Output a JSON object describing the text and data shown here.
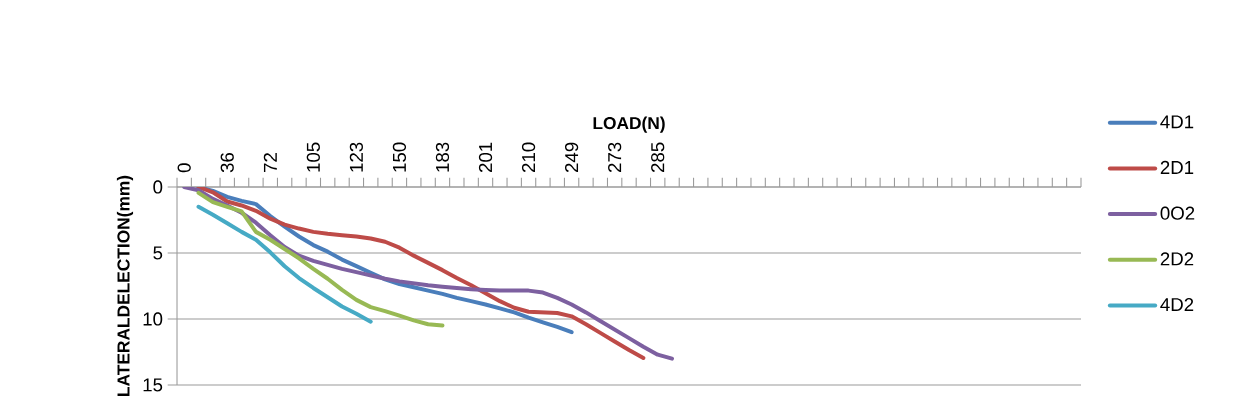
{
  "chart_data": {
    "type": "line",
    "xlabel": "LOAD(N)",
    "ylabel": "LATERALDELECTION(mm)",
    "categories": [
      "0",
      null,
      null,
      "36",
      null,
      null,
      "72",
      null,
      null,
      "105",
      null,
      null,
      "123",
      null,
      null,
      "150",
      null,
      null,
      "183",
      null,
      null,
      "201",
      null,
      null,
      "210",
      null,
      null,
      "249",
      null,
      null,
      "273",
      null,
      null,
      "285",
      null,
      null,
      null,
      null,
      null,
      null,
      null,
      null,
      null,
      null,
      null,
      null,
      null,
      null,
      null,
      null,
      null,
      null,
      null,
      null,
      null,
      null,
      null,
      null,
      null,
      null,
      null,
      null,
      null
    ],
    "series": [
      {
        "name": "4D1",
        "color": "#4a7ebb",
        "values": [
          null,
          0,
          0.3,
          0.75,
          1.05,
          1.3,
          2.2,
          3.0,
          3.75,
          4.4,
          4.9,
          5.5,
          6.0,
          6.5,
          7.0,
          7.35,
          7.6,
          7.85,
          8.1,
          8.4,
          8.65,
          8.9,
          9.2,
          9.5,
          9.9,
          10.25,
          10.6,
          11.0,
          null,
          null,
          null,
          null,
          null,
          null,
          null,
          null,
          null,
          null,
          null,
          null,
          null,
          null,
          null,
          null,
          null,
          null,
          null,
          null,
          null,
          null,
          null,
          null,
          null,
          null,
          null,
          null,
          null,
          null,
          null,
          null,
          null,
          null,
          null
        ]
      },
      {
        "name": "2D1",
        "color": "#be4b48",
        "values": [
          null,
          0,
          0.4,
          1.1,
          1.4,
          1.8,
          2.4,
          2.85,
          3.15,
          3.4,
          3.55,
          3.65,
          3.75,
          3.9,
          4.15,
          4.6,
          5.2,
          5.75,
          6.3,
          6.9,
          7.45,
          8.05,
          8.65,
          9.15,
          9.45,
          9.5,
          9.55,
          9.8,
          10.4,
          11.05,
          11.7,
          12.35,
          12.95,
          null,
          null,
          null,
          null,
          null,
          null,
          null,
          null,
          null,
          null,
          null,
          null,
          null,
          null,
          null,
          null,
          null,
          null,
          null,
          null,
          null,
          null,
          null,
          null,
          null,
          null,
          null,
          null,
          null,
          null
        ]
      },
      {
        "name": "0O2",
        "color": "#7d60a0",
        "values": [
          0,
          0.25,
          0.9,
          1.4,
          1.95,
          2.7,
          3.65,
          4.55,
          5.2,
          5.6,
          5.9,
          6.2,
          6.45,
          6.7,
          6.95,
          7.15,
          7.3,
          7.45,
          7.55,
          7.65,
          7.75,
          7.8,
          7.85,
          7.85,
          7.85,
          8.0,
          8.4,
          8.9,
          9.5,
          10.15,
          10.8,
          11.45,
          12.1,
          12.7,
          13.0,
          null,
          null,
          null,
          null,
          null,
          null,
          null,
          null,
          null,
          null,
          null,
          null,
          null,
          null,
          null,
          null,
          null,
          null,
          null,
          null,
          null,
          null,
          null,
          null,
          null,
          null,
          null,
          null
        ]
      },
      {
        "name": "2D2",
        "color": "#98b954",
        "values": [
          null,
          0.45,
          1.15,
          1.5,
          1.85,
          3.4,
          4.0,
          4.7,
          5.4,
          6.2,
          6.95,
          7.8,
          8.55,
          9.1,
          9.4,
          9.75,
          10.1,
          10.4,
          10.5,
          null,
          null,
          null,
          null,
          null,
          null,
          null,
          null,
          null,
          null,
          null,
          null,
          null,
          null,
          null,
          null,
          null,
          null,
          null,
          null,
          null,
          null,
          null,
          null,
          null,
          null,
          null,
          null,
          null,
          null,
          null,
          null,
          null,
          null,
          null,
          null,
          null,
          null,
          null,
          null,
          null,
          null,
          null,
          null
        ]
      },
      {
        "name": "4D2",
        "color": "#46aac5",
        "values": [
          null,
          1.5,
          2.1,
          2.75,
          3.4,
          4.0,
          4.95,
          6.0,
          6.9,
          7.65,
          8.35,
          9.05,
          9.6,
          10.2,
          null,
          null,
          null,
          null,
          null,
          null,
          null,
          null,
          null,
          null,
          null,
          null,
          null,
          null,
          null,
          null,
          null,
          null,
          null,
          null,
          null,
          null,
          null,
          null,
          null,
          null,
          null,
          null,
          null,
          null,
          null,
          null,
          null,
          null,
          null,
          null,
          null,
          null,
          null,
          null,
          null,
          null,
          null,
          null,
          null,
          null,
          null,
          null,
          null
        ]
      }
    ],
    "ylim": [
      15,
      0
    ],
    "yticks": [
      0,
      5,
      10,
      15
    ],
    "grid": "y",
    "legend": "right"
  }
}
